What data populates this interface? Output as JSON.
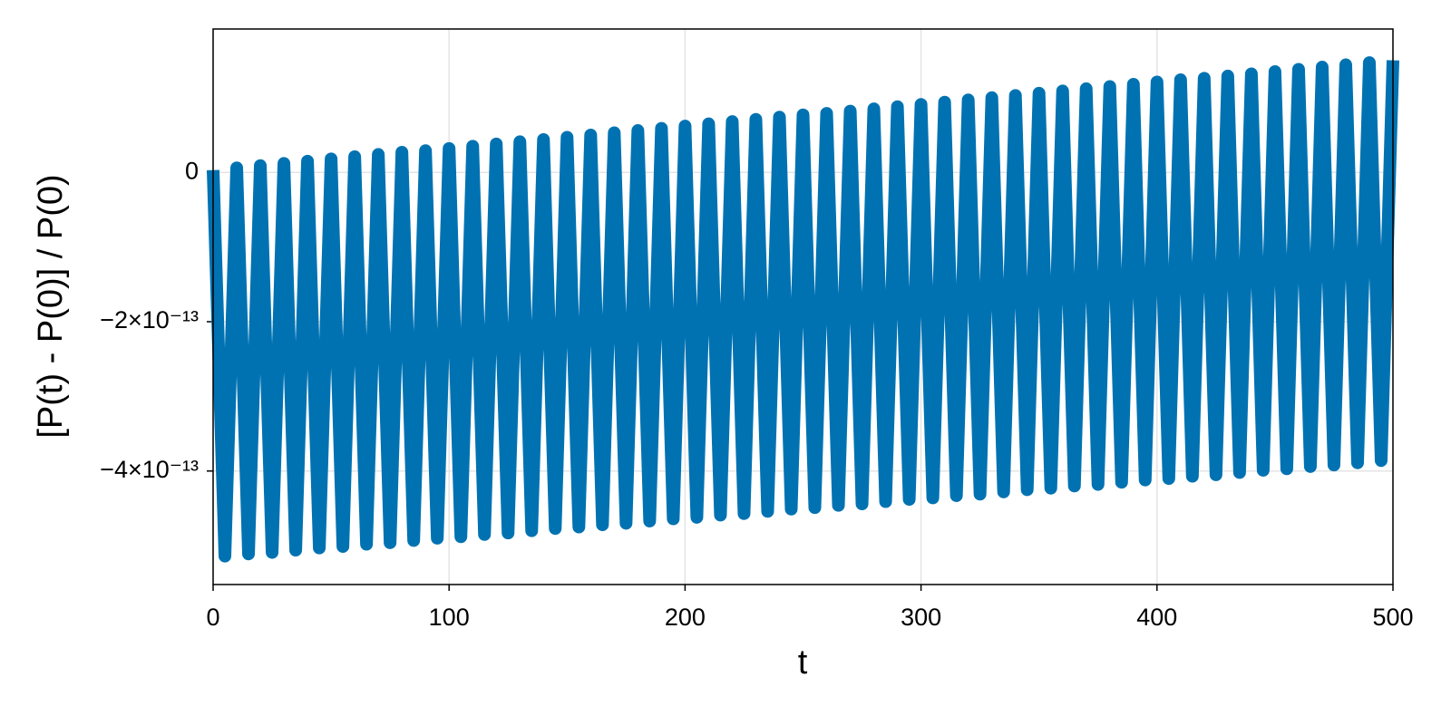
{
  "chart_data": {
    "type": "line",
    "xlabel": "t",
    "ylabel": "[P(t) - P(0)] / P(0)",
    "color": "#0072b2",
    "x": [
      0,
      5,
      10,
      15,
      20,
      25,
      30,
      35,
      40,
      45,
      50,
      55,
      60,
      65,
      70,
      75,
      80,
      85,
      90,
      95,
      100,
      105,
      110,
      115,
      120,
      125,
      130,
      135,
      140,
      145,
      150,
      155,
      160,
      165,
      170,
      175,
      180,
      185,
      190,
      195,
      200,
      205,
      210,
      215,
      220,
      225,
      230,
      235,
      240,
      245,
      250,
      255,
      260,
      265,
      270,
      275,
      280,
      285,
      290,
      295,
      300,
      305,
      310,
      315,
      320,
      325,
      330,
      335,
      340,
      345,
      350,
      355,
      360,
      365,
      370,
      375,
      380,
      385,
      390,
      395,
      400,
      405,
      410,
      415,
      420,
      425,
      430,
      435,
      440,
      445,
      450,
      455,
      460,
      465,
      470,
      475,
      480,
      485,
      490,
      495,
      500
    ],
    "values": [
      3e-15,
      -5.14e-13,
      6e-15,
      -5.11e-13,
      9e-15,
      -5.09e-13,
      1.2e-14,
      -5.06e-13,
      1.5e-14,
      -5.03e-13,
      1.8e-14,
      -5.01e-13,
      2.1e-14,
      -4.98e-13,
      2.4e-14,
      -4.96e-13,
      2.7e-14,
      -4.93e-13,
      2.9e-14,
      -4.9e-13,
      3.2e-14,
      -4.88e-13,
      3.5e-14,
      -4.85e-13,
      3.8e-14,
      -4.83e-13,
      4.1e-14,
      -4.8e-13,
      4.4e-14,
      -4.77e-13,
      4.7e-14,
      -4.75e-13,
      5e-14,
      -4.72e-13,
      5.3e-14,
      -4.7e-13,
      5.6e-14,
      -4.67e-13,
      5.9e-14,
      -4.64e-13,
      6.2e-14,
      -4.62e-13,
      6.5e-14,
      -4.59e-13,
      6.8e-14,
      -4.57e-13,
      7.1e-14,
      -4.54e-13,
      7.4e-14,
      -4.51e-13,
      7.7e-14,
      -4.49e-13,
      7.9e-14,
      -4.46e-13,
      8.2e-14,
      -4.44e-13,
      8.5e-14,
      -4.41e-13,
      8.8e-14,
      -4.38e-13,
      9.1e-14,
      -4.36e-13,
      9.4e-14,
      -4.33e-13,
      9.7e-14,
      -4.31e-13,
      1e-13,
      -4.28e-13,
      1.03e-13,
      -4.25e-13,
      1.06e-13,
      -4.23e-13,
      1.09e-13,
      -4.2e-13,
      1.12e-13,
      -4.18e-13,
      1.15e-13,
      -4.15e-13,
      1.18e-13,
      -4.12e-13,
      1.21e-13,
      -4.1e-13,
      1.24e-13,
      -4.07e-13,
      1.26e-13,
      -4.05e-13,
      1.29e-13,
      -4.02e-13,
      1.32e-13,
      -3.99e-13,
      1.35e-13,
      -3.97e-13,
      1.38e-13,
      -3.94e-13,
      1.41e-13,
      -3.92e-13,
      1.44e-13,
      -3.89e-13,
      1.47e-13,
      -3.86e-13,
      1.5e-13
    ],
    "xlim": [
      0,
      500
    ],
    "xticks": [
      0,
      100,
      200,
      300,
      400,
      500
    ],
    "ylim": [
      -5.52e-13,
      1.92e-13
    ],
    "yticks": [
      {
        "value": -4e-13,
        "label": "−4×10⁻¹³"
      },
      {
        "value": -2e-13,
        "label": "−2×10⁻¹³"
      },
      0
    ],
    "grid": true
  }
}
